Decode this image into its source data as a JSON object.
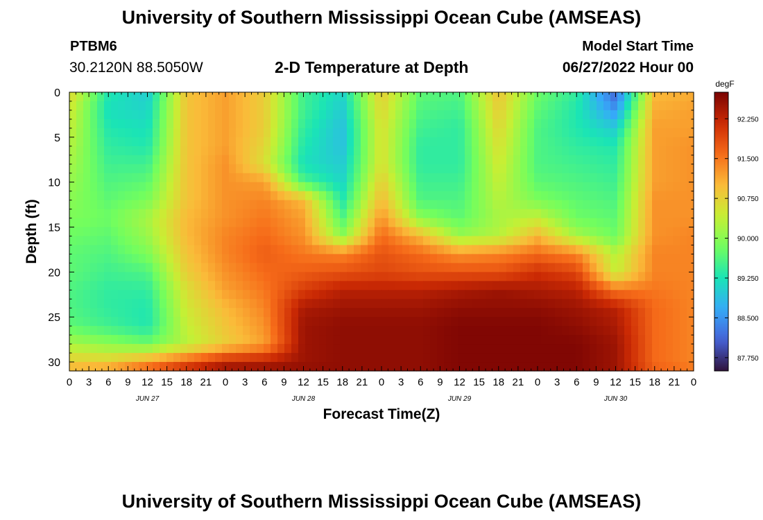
{
  "header": {
    "title": "University of Southern Mississippi Ocean Cube (AMSEAS)",
    "station": "PTBM6",
    "coordinates": "30.2120N  88.5050W",
    "subtitle": "2-D Temperature at Depth",
    "model_start_label": "Model Start Time",
    "model_start_value": "06/27/2022 Hour 00"
  },
  "footer": {
    "title": "University of Southern Mississippi Ocean Cube (AMSEAS)"
  },
  "chart_data": {
    "type": "heatmap",
    "title": "2-D Temperature at Depth",
    "xlabel": "Forecast Time(Z)",
    "ylabel": "Depth (ft)",
    "x_unit": "hours since 06/27/2022 00Z",
    "xlim": [
      0,
      96
    ],
    "ylim": [
      0,
      31
    ],
    "y_inverted": true,
    "x_tick_values": [
      0,
      3,
      6,
      9,
      12,
      15,
      18,
      21,
      24,
      27,
      30,
      33,
      36,
      39,
      42,
      45,
      48,
      51,
      54,
      57,
      60,
      63,
      66,
      69,
      72,
      75,
      78,
      81,
      84,
      87,
      90,
      93,
      96
    ],
    "x_tick_labels": [
      "0",
      "3",
      "6",
      "9",
      "12",
      "15",
      "18",
      "21",
      "0",
      "3",
      "6",
      "9",
      "12",
      "15",
      "18",
      "21",
      "0",
      "3",
      "6",
      "9",
      "12",
      "15",
      "18",
      "21",
      "0",
      "3",
      "6",
      "9",
      "12",
      "15",
      "18",
      "21",
      "0"
    ],
    "date_labels": [
      {
        "x": 12,
        "label": "JUN 27"
      },
      {
        "x": 36,
        "label": "JUN 28"
      },
      {
        "x": 60,
        "label": "JUN 29"
      },
      {
        "x": 84,
        "label": "JUN 30"
      }
    ],
    "y_tick_values": [
      0,
      5,
      10,
      15,
      20,
      25,
      30
    ],
    "y_tick_labels": [
      "0",
      "5",
      "10",
      "15",
      "20",
      "25",
      "30"
    ],
    "colorbar": {
      "unit": "degF",
      "range": [
        87.5,
        92.75
      ],
      "tick_values": [
        87.75,
        88.5,
        89.25,
        90.0,
        90.75,
        91.5,
        92.25
      ],
      "tick_labels": [
        "87.750",
        "88.500",
        "89.250",
        "90.000",
        "90.750",
        "91.500",
        "92.250"
      ],
      "colors": [
        "#30123b",
        "#4662d7",
        "#36aaf9",
        "#1ae4b6",
        "#72fe5e",
        "#c7ef34",
        "#fabb39",
        "#f66b19",
        "#cb2a04",
        "#7a0403"
      ]
    },
    "depths_ft": [
      0,
      2,
      4,
      6,
      8,
      10,
      12,
      14,
      16,
      18,
      20,
      22,
      24,
      26,
      28,
      30,
      31
    ],
    "times_h": [
      0,
      6,
      12,
      18,
      24,
      30,
      36,
      42,
      48,
      54,
      60,
      66,
      72,
      78,
      84,
      90,
      96
    ],
    "temperature_degF": [
      [
        90.7,
        89.3,
        89.0,
        90.9,
        91.2,
        90.8,
        89.5,
        89.1,
        90.8,
        89.7,
        89.6,
        90.9,
        89.8,
        89.4,
        88.1,
        91.0,
        91.1
      ],
      [
        90.5,
        89.2,
        89.1,
        90.9,
        91.2,
        90.8,
        89.5,
        89.0,
        90.7,
        89.6,
        89.5,
        90.8,
        89.7,
        89.3,
        88.5,
        91.1,
        91.2
      ],
      [
        90.4,
        89.3,
        89.2,
        90.9,
        91.2,
        90.8,
        89.4,
        88.9,
        90.6,
        89.5,
        89.4,
        90.7,
        89.6,
        89.3,
        89.0,
        91.2,
        91.2
      ],
      [
        90.3,
        89.4,
        89.3,
        90.9,
        91.2,
        90.7,
        89.3,
        88.9,
        90.6,
        89.4,
        89.4,
        90.6,
        89.6,
        89.4,
        89.3,
        91.2,
        91.3
      ],
      [
        90.2,
        89.5,
        89.5,
        90.9,
        91.3,
        90.6,
        89.2,
        89.0,
        90.6,
        89.4,
        89.4,
        90.5,
        89.6,
        89.5,
        89.4,
        91.2,
        91.3
      ],
      [
        90.1,
        89.6,
        89.7,
        90.9,
        91.3,
        91.2,
        89.6,
        89.1,
        90.8,
        89.5,
        89.5,
        90.4,
        89.7,
        89.6,
        89.5,
        91.2,
        91.3
      ],
      [
        90.0,
        89.7,
        89.9,
        90.9,
        91.3,
        91.4,
        91.0,
        89.3,
        91.0,
        89.6,
        89.6,
        90.3,
        89.9,
        89.7,
        89.6,
        91.3,
        91.3
      ],
      [
        89.9,
        89.8,
        90.2,
        91.0,
        91.3,
        91.5,
        91.2,
        89.6,
        91.3,
        90.0,
        89.7,
        90.2,
        90.4,
        89.8,
        89.7,
        91.3,
        91.3
      ],
      [
        89.8,
        89.7,
        90.1,
        91.0,
        91.4,
        91.6,
        91.3,
        90.0,
        91.6,
        91.0,
        90.1,
        90.3,
        91.0,
        90.2,
        89.8,
        91.3,
        91.4
      ],
      [
        89.7,
        89.6,
        89.9,
        90.9,
        91.4,
        91.7,
        91.5,
        91.4,
        91.8,
        91.6,
        91.3,
        91.4,
        91.6,
        91.4,
        90.3,
        91.4,
        91.4
      ],
      [
        89.7,
        89.5,
        89.6,
        90.8,
        91.3,
        91.6,
        91.7,
        91.8,
        91.9,
        91.8,
        91.8,
        91.8,
        92.1,
        91.9,
        90.4,
        91.4,
        91.4
      ],
      [
        89.6,
        89.4,
        89.4,
        90.6,
        91.2,
        91.5,
        92.0,
        92.3,
        92.3,
        92.3,
        92.4,
        92.5,
        92.4,
        92.3,
        91.5,
        91.5,
        91.4
      ],
      [
        89.6,
        89.4,
        89.3,
        90.5,
        91.0,
        91.4,
        92.4,
        92.5,
        92.5,
        92.5,
        92.6,
        92.6,
        92.6,
        92.5,
        92.3,
        91.6,
        91.4
      ],
      [
        89.7,
        89.5,
        89.3,
        90.4,
        90.9,
        91.3,
        92.5,
        92.6,
        92.6,
        92.6,
        92.7,
        92.7,
        92.7,
        92.6,
        92.4,
        91.6,
        91.4
      ],
      [
        90.2,
        90.0,
        89.8,
        90.3,
        90.8,
        91.2,
        92.5,
        92.6,
        92.6,
        92.6,
        92.7,
        92.7,
        92.7,
        92.7,
        92.5,
        91.6,
        91.4
      ],
      [
        90.8,
        90.8,
        91.2,
        91.7,
        92.2,
        92.3,
        92.5,
        92.6,
        92.6,
        92.6,
        92.7,
        92.7,
        92.7,
        92.7,
        92.5,
        91.6,
        91.4
      ],
      [
        91.1,
        91.3,
        91.8,
        92.3,
        92.6,
        92.6,
        92.6,
        92.6,
        92.6,
        92.6,
        92.7,
        92.7,
        92.7,
        92.7,
        92.5,
        91.7,
        91.5
      ]
    ]
  }
}
